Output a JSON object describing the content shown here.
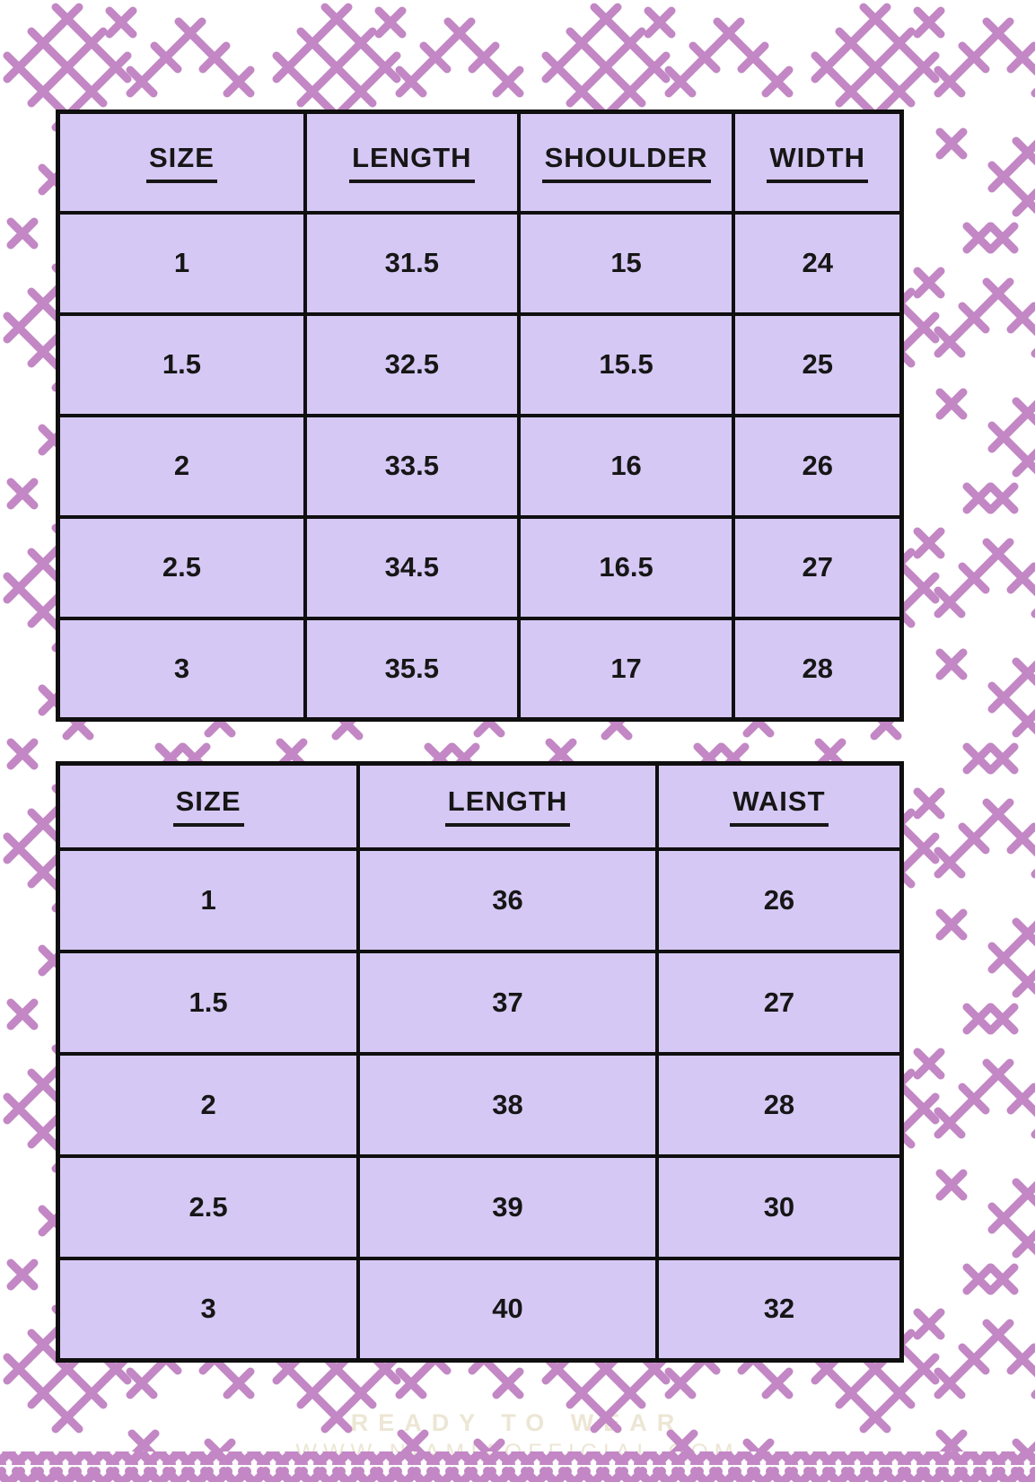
{
  "page": {
    "background_color": "#ffffff",
    "stitch_color": "#c287c4",
    "cell_color": "#d6c8f4",
    "border_color": "#0f0f0f",
    "text_color": "#161616",
    "watermark_color": "#ece6d4"
  },
  "tables": [
    {
      "headers": [
        "SIZE",
        "LENGTH",
        "SHOULDER",
        "WIDTH"
      ],
      "rows": [
        [
          "1",
          "31.5",
          "15",
          "24"
        ],
        [
          "1.5",
          "32.5",
          "15.5",
          "25"
        ],
        [
          "2",
          "33.5",
          "16",
          "26"
        ],
        [
          "2.5",
          "34.5",
          "16.5",
          "27"
        ],
        [
          "3",
          "35.5",
          "17",
          "28"
        ]
      ]
    },
    {
      "headers": [
        "SIZE",
        "LENGTH",
        "WAIST"
      ],
      "rows": [
        [
          "1",
          "36",
          "26"
        ],
        [
          "1.5",
          "37",
          "27"
        ],
        [
          "2",
          "38",
          "28"
        ],
        [
          "2.5",
          "39",
          "30"
        ],
        [
          "3",
          "40",
          "32"
        ]
      ]
    }
  ],
  "watermark": {
    "line1": "READY TO WEAR",
    "line2": "WWW.NIAMIAOFFICIAL.COM"
  }
}
